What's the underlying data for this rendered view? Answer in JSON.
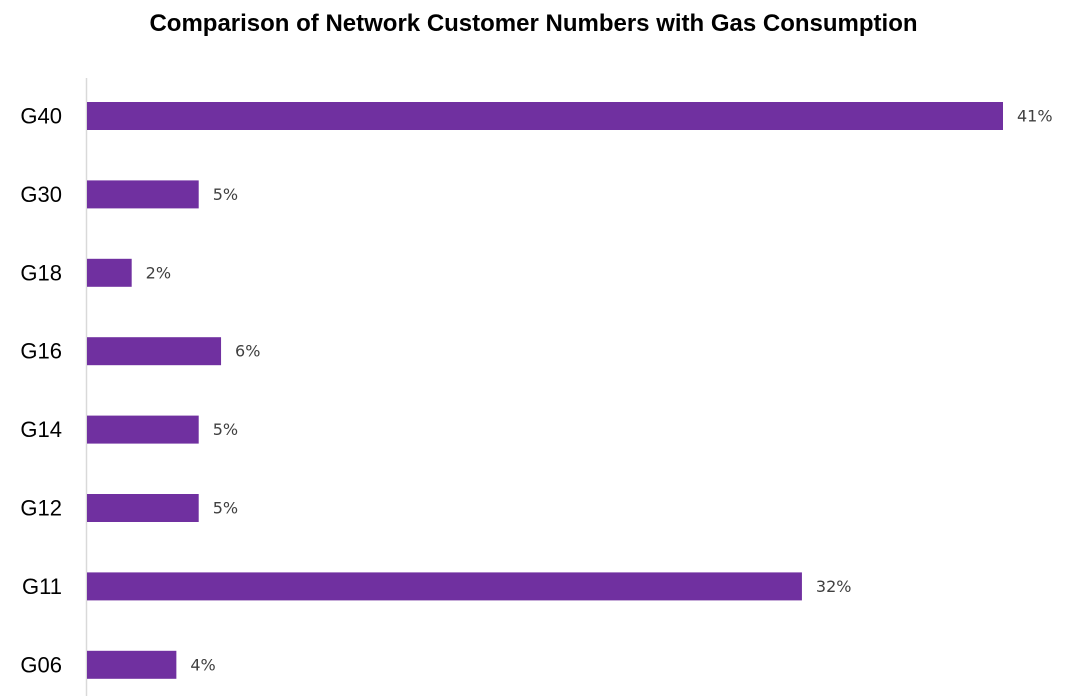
{
  "chart_data": {
    "type": "bar",
    "orientation": "horizontal",
    "title": "Comparison of Network Customer Numbers with Gas Consumption",
    "xlabel": "",
    "ylabel": "",
    "categories": [
      "G40",
      "G30",
      "G18",
      "G16",
      "G14",
      "G12",
      "G11",
      "G06"
    ],
    "values": [
      41,
      5,
      2,
      6,
      5,
      5,
      32,
      4
    ],
    "value_labels": [
      "41%",
      "5%",
      "2%",
      "6%",
      "5%",
      "5%",
      "32%",
      "4%"
    ],
    "unit": "%",
    "xlim": [
      0,
      41
    ],
    "grid": false,
    "legend": "none",
    "colors": {
      "bar": "#7030a0",
      "axis": "#d9d9d9"
    }
  }
}
